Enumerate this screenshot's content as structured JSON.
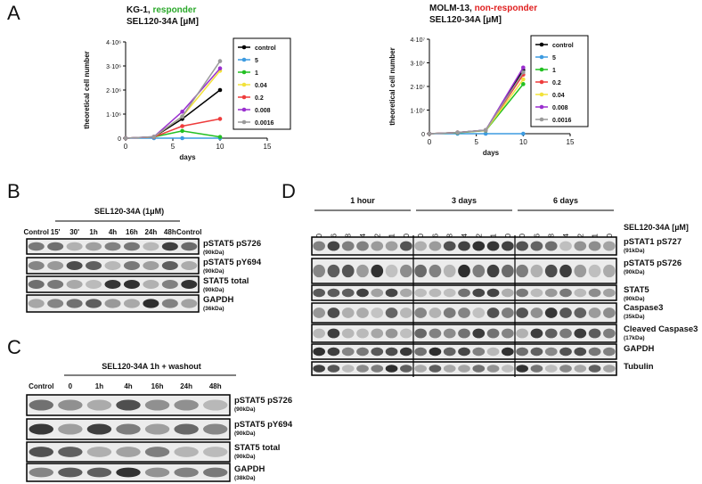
{
  "chart_data": [
    {
      "type": "line",
      "title": "KG-1,",
      "status": "responder",
      "status_color": "#2aa82a",
      "subtitle": "SEL120-34A [µM]",
      "xlabel": "days",
      "ylabel": "theoretical cell number",
      "x": [
        0,
        3,
        6,
        10
      ],
      "xlim": [
        0,
        15
      ],
      "xticks": [
        0,
        5,
        10,
        15
      ],
      "ylim": [
        0,
        4000000
      ],
      "yticks": [
        0,
        {
          "value": 1000000,
          "label": "1·10⁶"
        },
        {
          "value": 2000000,
          "label": "2·10⁶"
        },
        {
          "value": 3000000,
          "label": "3·10⁶"
        },
        {
          "value": 4000000,
          "label": "4·10⁶"
        }
      ],
      "legend": "right",
      "series": [
        {
          "name": "control",
          "color": "#000000",
          "values": [
            0,
            50000,
            800000,
            2000000
          ]
        },
        {
          "name": "5",
          "color": "#3d9be0",
          "values": [
            0,
            0,
            0,
            0
          ]
        },
        {
          "name": "1",
          "color": "#22c022",
          "values": [
            0,
            50000,
            300000,
            50000
          ]
        },
        {
          "name": "0.04",
          "color": "#f2e23a",
          "values": [
            0,
            50000,
            900000,
            2800000
          ]
        },
        {
          "name": "0.2",
          "color": "#ee3c3c",
          "values": [
            0,
            50000,
            500000,
            800000
          ]
        },
        {
          "name": "0.008",
          "color": "#9a2fcf",
          "values": [
            0,
            60000,
            1100000,
            2900000
          ]
        },
        {
          "name": "0.0016",
          "color": "#9a9a9a",
          "values": [
            0,
            60000,
            900000,
            3200000
          ]
        }
      ]
    },
    {
      "type": "line",
      "title": "MOLM-13,",
      "status": "non-responder",
      "status_color": "#e02020",
      "subtitle": "SEL120-34A [µM]",
      "xlabel": "days",
      "ylabel": "theoretical cell number",
      "x": [
        0,
        3,
        6,
        10
      ],
      "xlim": [
        0,
        15
      ],
      "xticks": [
        0,
        5,
        10,
        15
      ],
      "ylim": [
        0,
        40000000
      ],
      "yticks": [
        0,
        {
          "value": 10000000,
          "label": "1·10⁷"
        },
        {
          "value": 20000000,
          "label": "2·10⁷"
        },
        {
          "value": 30000000,
          "label": "3·10⁷"
        },
        {
          "value": 40000000,
          "label": "4·10⁷"
        }
      ],
      "legend": "right",
      "series": [
        {
          "name": "control",
          "color": "#000000",
          "values": [
            0,
            500000,
            1500000,
            27000000
          ]
        },
        {
          "name": "5",
          "color": "#3d9be0",
          "values": [
            0,
            0,
            0,
            0
          ]
        },
        {
          "name": "1",
          "color": "#22c022",
          "values": [
            0,
            400000,
            1300000,
            21000000
          ]
        },
        {
          "name": "0.2",
          "color": "#ee3c3c",
          "values": [
            0,
            500000,
            1400000,
            25000000
          ]
        },
        {
          "name": "0.04",
          "color": "#f2e23a",
          "values": [
            0,
            500000,
            1400000,
            23000000
          ]
        },
        {
          "name": "0.008",
          "color": "#9a2fcf",
          "values": [
            0,
            500000,
            1500000,
            28000000
          ]
        },
        {
          "name": "0.0016",
          "color": "#9a9a9a",
          "values": [
            0,
            500000,
            1500000,
            26000000
          ]
        }
      ]
    }
  ],
  "panel_labels": [
    "A",
    "B",
    "C",
    "D"
  ],
  "blot_b": {
    "treatment": "SEL120-34A (1μM)",
    "lanes": [
      "Control",
      "15'",
      "30'",
      "1h",
      "4h",
      "16h",
      "24h",
      "48h",
      "Control"
    ],
    "rows": [
      {
        "name": "pSTAT5 pS726",
        "size": "(90kDa)"
      },
      {
        "name": "pSTAT5 pY694",
        "size": "(90kDa)"
      },
      {
        "name": "STAT5 total",
        "size": "(90kDa)"
      },
      {
        "name": "GAPDH",
        "size": "(36kDa)"
      }
    ]
  },
  "blot_c": {
    "treatment": "SEL120-34A 1h + washout",
    "lanes": [
      "Control",
      "0",
      "1h",
      "4h",
      "16h",
      "24h",
      "48h"
    ],
    "rows": [
      {
        "name": "pSTAT5 pS726",
        "size": "(90kDa)"
      },
      {
        "name": "pSTAT5 pY694",
        "size": "(90kDa)"
      },
      {
        "name": "STAT5 total",
        "size": "(90kDa)"
      },
      {
        "name": "GAPDH",
        "size": "(38kDa)"
      }
    ]
  },
  "blot_d": {
    "treatment": "SEL120-34A [µM]",
    "groups": [
      "1 hour",
      "3 days",
      "6 days"
    ],
    "lanes": [
      "0",
      "0.0016",
      "0.008",
      "0.04",
      "0.2",
      "1",
      "0"
    ],
    "rows": [
      {
        "name": "pSTAT1 pS727",
        "size": "(91kDa)"
      },
      {
        "name": "pSTAT5 pS726",
        "size": "(90kDa)"
      },
      {
        "name": "STAT5",
        "size": "(90kDa)"
      },
      {
        "name": "Caspase3",
        "size": "(35kDa)"
      },
      {
        "name": "Cleaved Caspase3",
        "size": "(17kDa)"
      },
      {
        "name": "GAPDH"
      },
      {
        "name": "Tubulin"
      }
    ]
  }
}
